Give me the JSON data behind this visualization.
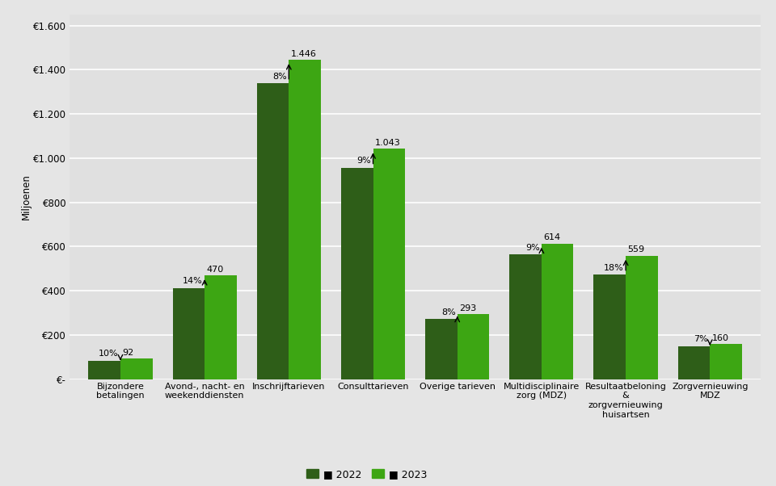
{
  "categories": [
    "Bijzondere\nbetalingen",
    "Avond-, nacht- en\nweekenddiensten",
    "Inschrijftarieven",
    "Consulttarieven",
    "Overige tarieven",
    "Multidisciplinaire\nzorg (MDZ)",
    "Resultaatbeloning\n&\nzorgvernieuwing\nhuisartsen",
    "Zorgvernieuwing\nMDZ"
  ],
  "values_2022": [
    84,
    413,
    1340,
    957,
    272,
    564,
    474,
    150
  ],
  "values_2023": [
    92,
    470,
    1446,
    1043,
    293,
    614,
    559,
    160
  ],
  "pct_labels": [
    "10%",
    "14%",
    "8%",
    "9%",
    "8%",
    "9%",
    "18%",
    "7%"
  ],
  "val_labels_2023": [
    "92",
    "470",
    "1.446",
    "1.043",
    "293",
    "614",
    "559",
    "160"
  ],
  "color_2022": "#2e5e18",
  "color_2023": "#3da613",
  "background_color": "#e5e5e5",
  "plot_bg_color": "#e0e0e0",
  "grid_color": "#ffffff",
  "ylabel": "Miljoenen",
  "ytick_labels": [
    "€-",
    "€200",
    "€400",
    "€600",
    "€800",
    "€1.000",
    "€1.200",
    "€1.400",
    "€1.600"
  ],
  "ytick_values": [
    0,
    200,
    400,
    600,
    800,
    1000,
    1200,
    1400,
    1600
  ],
  "legend_2022": "2022",
  "legend_2023": "2023",
  "bar_width": 0.38,
  "figsize": [
    9.6,
    6.02
  ],
  "dpi": 100
}
